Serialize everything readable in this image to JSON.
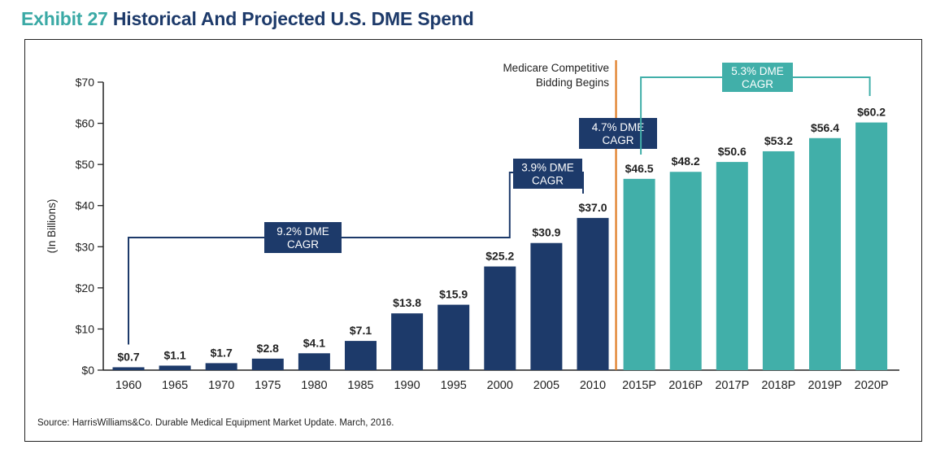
{
  "title": {
    "exhibit": "Exhibit 27",
    "text": "Historical And Projected U.S. DME Spend"
  },
  "source": "Source: HarrisWilliams&Co. Durable Medical Equipment Market Update. March, 2016.",
  "colors": {
    "historical": "#1d3a6a",
    "projected": "#41afa9",
    "divider": "#e07b22",
    "exhibit": "#3aa9a5"
  },
  "annotations": {
    "divider_label": [
      "Medicare Competitive",
      "Bidding Begins"
    ],
    "cagr_1": [
      "9.2% DME",
      "CAGR"
    ],
    "cagr_2": [
      "3.9% DME",
      "CAGR"
    ],
    "cagr_3": [
      "4.7% DME",
      "CAGR"
    ],
    "cagr_4": [
      "5.3% DME",
      "CAGR"
    ]
  },
  "chart_data": {
    "type": "bar",
    "title": "Historical And Projected U.S. DME Spend",
    "xlabel": "",
    "ylabel": "(In Billions)",
    "ylim": [
      0,
      70
    ],
    "yticks": [
      0,
      10,
      20,
      30,
      40,
      50,
      60,
      70
    ],
    "ytick_labels": [
      "$0",
      "$10",
      "$20",
      "$30",
      "$40",
      "$50",
      "$60",
      "$70"
    ],
    "grid": false,
    "categories": [
      "1960",
      "1965",
      "1970",
      "1975",
      "1980",
      "1985",
      "1990",
      "1995",
      "2000",
      "2005",
      "2010",
      "2015P",
      "2016P",
      "2017P",
      "2018P",
      "2019P",
      "2020P"
    ],
    "values": [
      0.7,
      1.1,
      1.7,
      2.8,
      4.1,
      7.1,
      13.8,
      15.9,
      25.2,
      30.9,
      37.0,
      46.5,
      48.2,
      50.6,
      53.2,
      56.4,
      60.2
    ],
    "value_labels": [
      "$0.7",
      "$1.1",
      "$1.7",
      "$2.8",
      "$4.1",
      "$7.1",
      "$13.8",
      "$15.9",
      "$25.2",
      "$30.9",
      "$37.0",
      "$46.5",
      "$48.2",
      "$50.6",
      "$53.2",
      "$56.4",
      "$60.2"
    ],
    "projected": [
      false,
      false,
      false,
      false,
      false,
      false,
      false,
      false,
      false,
      false,
      false,
      true,
      true,
      true,
      true,
      true,
      true
    ]
  }
}
